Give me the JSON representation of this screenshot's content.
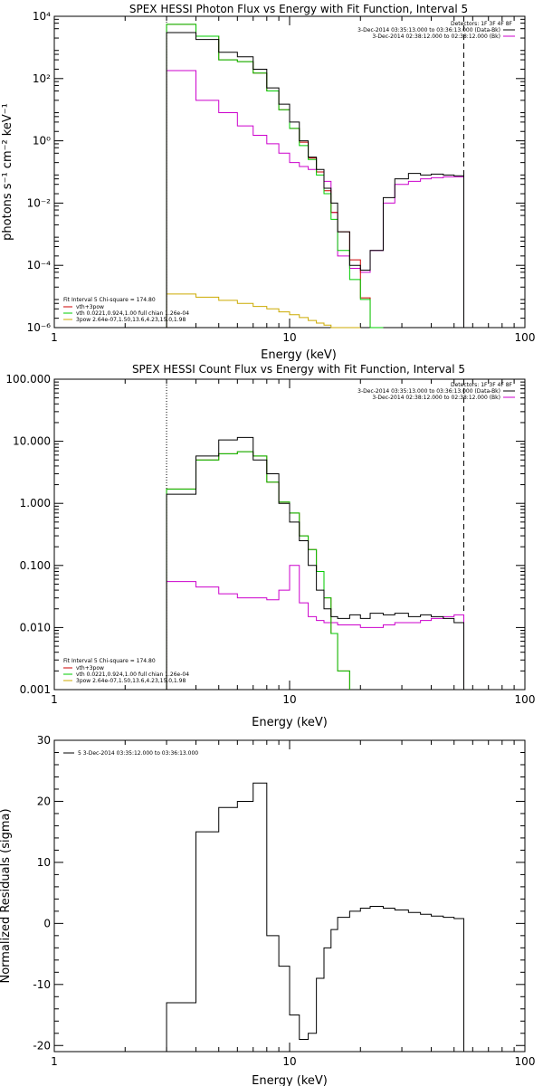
{
  "panels": [
    {
      "id": "photon",
      "title": "SPEX HESSI Photon Flux vs Energy with Fit Function, Interval 5",
      "xlabel": "Energy (keV)",
      "ylabel": "photons s⁻¹ cm⁻² keV⁻¹",
      "xticks": [
        "1",
        "10",
        "100"
      ],
      "yticks": [
        "10⁴",
        "10²",
        "10⁰",
        "10⁻²",
        "10⁻⁴",
        "10⁻⁶"
      ],
      "legend_right": [
        "Detectors: 1F 3F 4F 8F",
        "3-Dec-2014 03:35:13.000 to 03:36:13.000 (Data-Bk)",
        "3-Dec-2014 02:38:12.000 to 02:38:12.000 (Bk)"
      ],
      "legend_left": [
        "Fit Interval 5   Chi-square = 174.80",
        "vth+3pow",
        "vth 0.0221,0.924,1.00  full chian 1.26e-04",
        "3pow 2.64e-07,1.50,13.6,4.23,15.0,1.98"
      ]
    },
    {
      "id": "count",
      "title": "SPEX HESSI Count Flux vs Energy with Fit Function, Interval 5",
      "xlabel": "Energy (keV)",
      "yticks": [
        "100.000",
        "10.000",
        "1.000",
        "0.100",
        "0.010",
        "0.001"
      ],
      "xticks": [
        "1",
        "10",
        "100"
      ],
      "legend_right": [
        "Detectors: 1F 3F 4F 8F",
        "3-Dec-2014 03:35:13.000 to 03:36:13.000 (Data-Bk)",
        "3-Dec-2014 02:38:12.000 to 02:38:12.000 (Bk)"
      ],
      "legend_left": [
        "Fit Interval 5   Chi-square = 174.80",
        "vth+3pow",
        "vth 0.0221,0.924,1.00  full chian 1.26e-04",
        "3pow 2.64e-07,1.50,13.6,4.23,15.0,1.98"
      ]
    },
    {
      "id": "resid",
      "xlabel": "Energy (keV)",
      "ylabel": "Normalized Residuals (sigma)",
      "yticks": [
        "30",
        "20",
        "10",
        "0",
        "-10",
        "-20"
      ],
      "xticks": [
        "1",
        "10",
        "100"
      ],
      "legend_left": [
        "5  3-Dec-2014 03:35:12.000 to 03:36:13.000"
      ]
    }
  ],
  "chart_data": [
    {
      "type": "line",
      "title": "SPEX HESSI Photon Flux vs Energy with Fit Function, Interval 5",
      "xlabel": "Energy (keV)",
      "ylabel": "photons s⁻¹ cm⁻² keV⁻¹",
      "xscale": "log",
      "yscale": "log",
      "xlim": [
        1,
        100
      ],
      "ylim": [
        1e-06,
        10000.0
      ],
      "vlines": [
        3,
        55
      ],
      "edges": [
        3,
        4,
        5,
        6,
        7,
        8,
        9,
        10,
        11,
        12,
        13,
        14,
        15,
        16,
        18,
        20,
        22,
        25,
        28,
        32,
        36,
        40,
        45,
        50,
        55
      ],
      "series": [
        {
          "name": "Data-Bk",
          "color": "#000000",
          "values": [
            3000,
            1800,
            700,
            500,
            200,
            50,
            15,
            4,
            1.0,
            0.3,
            0.12,
            0.03,
            0.01,
            0.0012,
            0.0001,
            7e-05,
            0.0003,
            0.015,
            0.06,
            0.09,
            0.08,
            0.085,
            0.08,
            0.075
          ]
        },
        {
          "name": "vth+3pow",
          "color": "#cc0000",
          "values": [
            5500,
            2300,
            400,
            350,
            150,
            40,
            10,
            2.5,
            0.9,
            0.28,
            0.1,
            0.025,
            0.005,
            0.0012,
            0.00015,
            9e-06,
            8e-07,
            null,
            null,
            null,
            null,
            null,
            null,
            null
          ]
        },
        {
          "name": "vth",
          "color": "#00cc00",
          "values": [
            5500,
            2300,
            400,
            350,
            150,
            40,
            10,
            2.5,
            0.7,
            0.25,
            0.08,
            0.02,
            0.003,
            0.0003,
            3.5e-05,
            8e-06,
            8e-07,
            null,
            null,
            null,
            null,
            null,
            null,
            null
          ]
        },
        {
          "name": "3pow",
          "color": "#ccaa00",
          "values": [
            1.2e-05,
            9.5e-06,
            7.5e-06,
            6e-06,
            4.8e-06,
            4e-06,
            3.2e-06,
            2.6e-06,
            2.1e-06,
            1.7e-06,
            1.4e-06,
            1.2e-06,
            1e-06,
            8.5e-07,
            7.5e-07,
            null,
            null,
            null,
            null,
            null,
            null,
            null,
            null,
            null
          ]
        },
        {
          "name": "Bk",
          "color": "#cc00cc",
          "values": [
            180,
            20,
            8,
            3,
            1.5,
            0.8,
            0.4,
            0.2,
            0.15,
            0.12,
            0.1,
            0.05,
            0.005,
            0.0002,
            8e-05,
            6e-05,
            0.0003,
            0.01,
            0.04,
            0.05,
            0.06,
            0.065,
            0.07,
            0.07
          ]
        }
      ]
    },
    {
      "type": "line",
      "title": "SPEX HESSI Count Flux vs Energy with Fit Function, Interval 5",
      "xlabel": "Energy (keV)",
      "xscale": "log",
      "yscale": "log",
      "xlim": [
        1,
        100
      ],
      "ylim": [
        0.001,
        100
      ],
      "vlines": [
        3,
        55
      ],
      "edges": [
        3,
        4,
        5,
        6,
        7,
        8,
        9,
        10,
        11,
        12,
        13,
        14,
        15,
        16,
        18,
        20,
        22,
        25,
        28,
        32,
        36,
        40,
        45,
        50,
        55
      ],
      "series": [
        {
          "name": "Data-Bk",
          "color": "#000000",
          "values": [
            1.4,
            5.8,
            10.5,
            11.5,
            5.0,
            3.0,
            1.0,
            0.5,
            0.25,
            0.1,
            0.04,
            0.02,
            0.015,
            0.014,
            0.016,
            0.014,
            0.017,
            0.016,
            0.017,
            0.015,
            0.016,
            0.015,
            0.014,
            0.012
          ]
        },
        {
          "name": "vth+3pow",
          "color": "#cc0000",
          "values": [
            1.7,
            5.0,
            6.3,
            6.8,
            5.8,
            2.2,
            1.05,
            0.7,
            0.3,
            0.18,
            0.08,
            0.03,
            0.008,
            0.002,
            null,
            null,
            null,
            null,
            null,
            null,
            null,
            null,
            null,
            null
          ]
        },
        {
          "name": "vth",
          "color": "#00cc00",
          "values": [
            1.7,
            5.0,
            6.3,
            6.8,
            5.8,
            2.2,
            1.05,
            0.7,
            0.3,
            0.18,
            0.08,
            0.03,
            0.008,
            0.002,
            null,
            null,
            null,
            null,
            null,
            null,
            null,
            null,
            null,
            null
          ]
        },
        {
          "name": "Bk",
          "color": "#cc00cc",
          "values": [
            0.055,
            0.045,
            0.035,
            0.03,
            0.03,
            0.028,
            0.04,
            0.1,
            0.025,
            0.015,
            0.013,
            0.012,
            0.012,
            0.011,
            0.011,
            0.01,
            0.01,
            0.011,
            0.012,
            0.012,
            0.013,
            0.014,
            0.015,
            0.016
          ]
        }
      ]
    },
    {
      "type": "line",
      "xlabel": "Energy (keV)",
      "ylabel": "Normalized Residuals (sigma)",
      "xscale": "log",
      "xlim": [
        1,
        100
      ],
      "ylim": [
        -21,
        30
      ],
      "edges": [
        3,
        4,
        5,
        6,
        7,
        8,
        9,
        10,
        11,
        12,
        13,
        14,
        15,
        16,
        18,
        20,
        22,
        25,
        28,
        32,
        36,
        40,
        45,
        50,
        55
      ],
      "series": [
        {
          "name": "5  3-Dec-2014 03:35:12.000 to 03:36:13.000",
          "color": "#000000",
          "values": [
            -13,
            15,
            19,
            20,
            23,
            -2,
            -7,
            -15,
            -19,
            -18,
            -9,
            -4,
            -1,
            1,
            2,
            2.5,
            2.8,
            2.5,
            2.2,
            1.8,
            1.5,
            1.2,
            1.0,
            0.8
          ]
        }
      ]
    }
  ]
}
